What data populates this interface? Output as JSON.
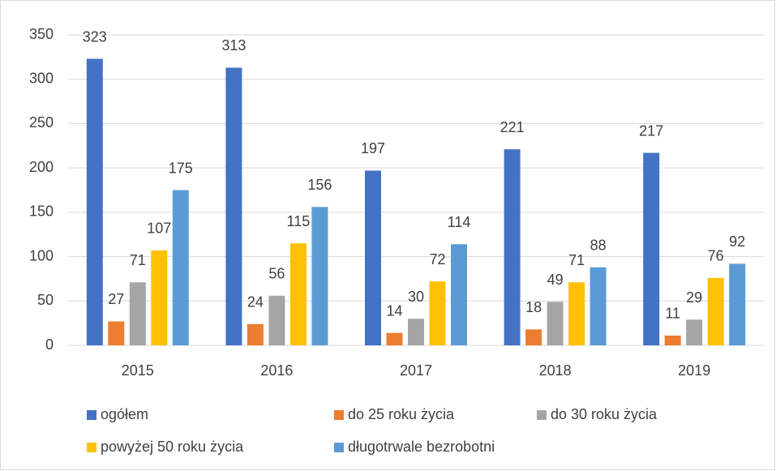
{
  "chart_data": {
    "type": "bar",
    "categories": [
      "2015",
      "2016",
      "2017",
      "2018",
      "2019"
    ],
    "series": [
      {
        "name": "ogółem",
        "color": "#4472c4",
        "values": [
          323,
          313,
          197,
          221,
          217
        ]
      },
      {
        "name": "do 25 roku życia",
        "color": "#ed7d31",
        "values": [
          27,
          24,
          14,
          18,
          11
        ]
      },
      {
        "name": "do 30 roku życia",
        "color": "#a5a5a5",
        "values": [
          71,
          56,
          30,
          49,
          29
        ]
      },
      {
        "name": "powyżej 50 roku życia",
        "color": "#ffc000",
        "values": [
          107,
          115,
          72,
          71,
          76
        ]
      },
      {
        "name": "długotrwale bezrobotni",
        "color": "#5b9bd5",
        "values": [
          175,
          156,
          114,
          88,
          92
        ]
      }
    ],
    "ylim": [
      0,
      350
    ],
    "yticks": [
      0,
      50,
      100,
      150,
      200,
      250,
      300,
      350
    ],
    "grid": true,
    "legend": "bottom"
  }
}
